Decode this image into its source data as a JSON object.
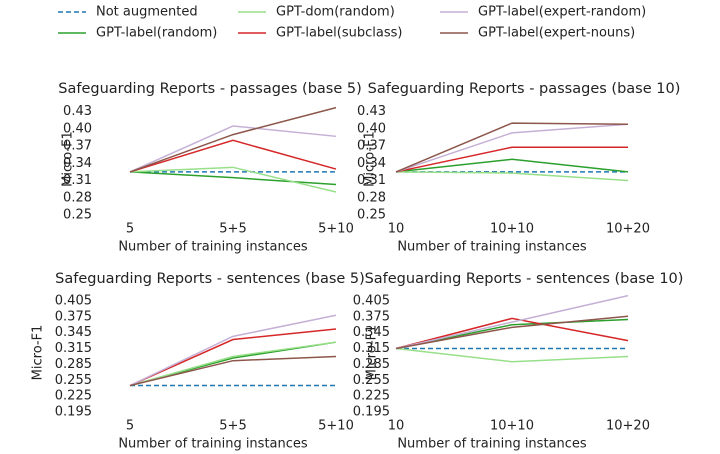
{
  "chart_data": [
    {
      "type": "line",
      "title": "Safeguarding Reports - passages (base 5)",
      "x_label": "Number of training instances",
      "y_label": "Micro-F1",
      "categories": [
        "5",
        "5+5",
        "5+10"
      ],
      "ylim": [
        0.25,
        0.445
      ],
      "yticks": [
        0.25,
        0.28,
        0.31,
        0.34,
        {
          "value": 0.37,
          "label": "0.37"
        },
        {
          "value": 0.4,
          "label": "0.40"
        },
        0.43
      ],
      "series": [
        {
          "name": "Not augmented",
          "color": "#1f77b4",
          "linestyle": "dashed",
          "values": [
            0.325,
            0.325,
            0.325
          ]
        },
        {
          "name": "GPT-label(random)",
          "color": "#2ca02c",
          "linestyle": "solid",
          "values": [
            0.325,
            0.315,
            0.303
          ]
        },
        {
          "name": "GPT-dom(random)",
          "color": "#98df8a",
          "linestyle": "solid",
          "values": [
            0.325,
            0.333,
            0.29
          ]
        },
        {
          "name": "GPT-label(subclass)",
          "color": "#d62728",
          "linestyle": "solid",
          "values": [
            0.325,
            0.38,
            0.33
          ]
        },
        {
          "name": "GPT-label(expert-random)",
          "color": "#c5b0d5",
          "linestyle": "solid",
          "values": [
            0.325,
            0.405,
            0.387
          ]
        },
        {
          "name": "GPT-label(expert-nouns)",
          "color": "#8c564b",
          "linestyle": "solid",
          "values": [
            0.325,
            0.39,
            0.437
          ]
        }
      ]
    },
    {
      "type": "line",
      "title": "Safeguarding Reports - passages (base 10)",
      "x_label": "Number of training instances",
      "y_label": "Micro-F1",
      "categories": [
        "10",
        "10+10",
        "10+20"
      ],
      "ylim": [
        0.25,
        0.445
      ],
      "yticks": [
        0.25,
        0.28,
        0.31,
        0.34,
        0.37,
        {
          "value": 0.4,
          "label": "0.40"
        },
        0.43
      ],
      "series": [
        {
          "name": "Not augmented",
          "color": "#1f77b4",
          "linestyle": "dashed",
          "values": [
            0.325,
            0.325,
            0.325
          ]
        },
        {
          "name": "GPT-label(random)",
          "color": "#2ca02c",
          "linestyle": "solid",
          "values": [
            0.325,
            0.347,
            0.325
          ]
        },
        {
          "name": "GPT-dom(random)",
          "color": "#98df8a",
          "linestyle": "solid",
          "values": [
            0.325,
            0.323,
            0.31
          ]
        },
        {
          "name": "GPT-label(subclass)",
          "color": "#d62728",
          "linestyle": "solid",
          "values": [
            0.325,
            0.368,
            0.368
          ]
        },
        {
          "name": "GPT-label(expert-random)",
          "color": "#c5b0d5",
          "linestyle": "solid",
          "values": [
            0.325,
            0.393,
            0.408
          ]
        },
        {
          "name": "GPT-label(expert-nouns)",
          "color": "#8c564b",
          "linestyle": "solid",
          "values": [
            0.325,
            0.41,
            0.408
          ]
        }
      ]
    },
    {
      "type": "line",
      "title": "Safeguarding Reports - sentences (base 5)",
      "x_label": "Number of training instances",
      "y_label": "Micro-F1",
      "categories": [
        "5",
        "5+5",
        "5+10"
      ],
      "ylim": [
        0.195,
        0.42
      ],
      "yticks": [
        0.195,
        0.225,
        0.255,
        0.285,
        0.315,
        0.345,
        0.375,
        0.405
      ],
      "series": [
        {
          "name": "Not augmented",
          "color": "#1f77b4",
          "linestyle": "dashed",
          "values": [
            0.245,
            0.245,
            0.245
          ]
        },
        {
          "name": "GPT-label(random)",
          "color": "#2ca02c",
          "linestyle": "solid",
          "values": [
            0.245,
            0.297,
            0.327
          ]
        },
        {
          "name": "GPT-dom(random)",
          "color": "#98df8a",
          "linestyle": "solid",
          "values": [
            0.245,
            0.3,
            0.327
          ]
        },
        {
          "name": "GPT-label(subclass)",
          "color": "#d62728",
          "linestyle": "solid",
          "values": [
            0.245,
            0.332,
            0.352
          ]
        },
        {
          "name": "GPT-label(expert-random)",
          "color": "#c5b0d5",
          "linestyle": "solid",
          "values": [
            0.245,
            0.338,
            0.378
          ]
        },
        {
          "name": "GPT-label(expert-nouns)",
          "color": "#8c564b",
          "linestyle": "solid",
          "values": [
            0.245,
            0.292,
            0.3
          ]
        }
      ]
    },
    {
      "type": "line",
      "title": "Safeguarding Reports - sentences (base 10)",
      "x_label": "Number of training instances",
      "y_label": "Micro-F1",
      "categories": [
        "10",
        "10+10",
        "10+20"
      ],
      "ylim": [
        0.195,
        0.42
      ],
      "yticks": [
        0.195,
        0.225,
        0.255,
        0.285,
        0.315,
        0.345,
        0.375,
        0.405
      ],
      "series": [
        {
          "name": "Not augmented",
          "color": "#1f77b4",
          "linestyle": "dashed",
          "values": [
            0.315,
            0.315,
            0.315
          ]
        },
        {
          "name": "GPT-label(random)",
          "color": "#2ca02c",
          "linestyle": "solid",
          "values": [
            0.315,
            0.36,
            0.37
          ]
        },
        {
          "name": "GPT-dom(random)",
          "color": "#98df8a",
          "linestyle": "solid",
          "values": [
            0.315,
            0.29,
            0.3
          ]
        },
        {
          "name": "GPT-label(subclass)",
          "color": "#d62728",
          "linestyle": "solid",
          "values": [
            0.315,
            0.372,
            0.33
          ]
        },
        {
          "name": "GPT-label(expert-random)",
          "color": "#c5b0d5",
          "linestyle": "solid",
          "values": [
            0.315,
            0.365,
            0.415
          ]
        },
        {
          "name": "GPT-label(expert-nouns)",
          "color": "#8c564b",
          "linestyle": "solid",
          "values": [
            0.315,
            0.355,
            0.376
          ]
        }
      ]
    }
  ]
}
